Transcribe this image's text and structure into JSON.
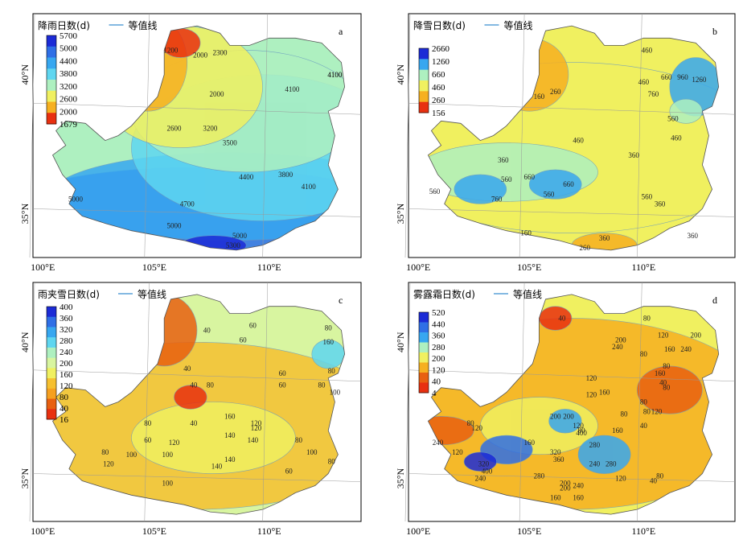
{
  "panels": [
    {
      "id": "a",
      "letter": "a",
      "title": "降雨日数(d)",
      "legend_line": "等值线",
      "colorbar": [
        "5700",
        "5000",
        "4400",
        "3800",
        "3200",
        "2600",
        "2000",
        "1679"
      ],
      "colors": [
        "#1c2bd6",
        "#2f6fe6",
        "#37a7f0",
        "#5fd6f0",
        "#aef0c0",
        "#f0f060",
        "#f6b020",
        "#e83010"
      ],
      "contours": [
        "1200",
        "2000",
        "2300",
        "2000",
        "2600",
        "3200",
        "3500",
        "4100",
        "4100",
        "4100",
        "3800",
        "4100",
        "4400",
        "4700",
        "5000",
        "5000",
        "5000",
        "5300"
      ],
      "x_ticks": [
        "100°E",
        "105°E",
        "110°E"
      ],
      "y_ticks": [
        "40°N",
        "35°N"
      ]
    },
    {
      "id": "b",
      "letter": "b",
      "title": "降雪日数(d)",
      "legend_line": "等值线",
      "colorbar": [
        "2660",
        "1260",
        "660",
        "460",
        "260",
        "156"
      ],
      "colors": [
        "#1c2bd6",
        "#37a7f0",
        "#aef0c0",
        "#f0f060",
        "#f6b020",
        "#e83010"
      ],
      "contours": [
        "460",
        "460",
        "660",
        "960",
        "1260",
        "760",
        "560",
        "460",
        "160",
        "260",
        "460",
        "360",
        "560",
        "660",
        "660",
        "560",
        "760",
        "560",
        "360",
        "360",
        "560",
        "360",
        "260",
        "360",
        "160"
      ],
      "x_ticks": [
        "100°E",
        "105°E",
        "110°E"
      ],
      "y_ticks": [
        "40°N",
        "35°N"
      ]
    },
    {
      "id": "c",
      "letter": "c",
      "title": "雨夹雪日数(d)",
      "legend_line": "等值线",
      "colorbar": [
        "400",
        "360",
        "320",
        "280",
        "240",
        "200",
        "160",
        "120",
        "80",
        "40",
        "16"
      ],
      "colors": [
        "#1c2bd6",
        "#2f6fe6",
        "#37a7f0",
        "#5fd6f0",
        "#aef0c0",
        "#d8f5a0",
        "#f0f060",
        "#f6c030",
        "#f6a020",
        "#e86010",
        "#e83010"
      ],
      "contours": [
        "80",
        "40",
        "60",
        "160",
        "40",
        "80",
        "60",
        "40",
        "80",
        "60",
        "40",
        "60",
        "80",
        "100",
        "80",
        "60",
        "160",
        "120",
        "140",
        "80",
        "140",
        "120",
        "140",
        "120",
        "100",
        "100",
        "80",
        "140",
        "100",
        "80",
        "60",
        "100",
        "120"
      ],
      "x_ticks": [
        "100°E",
        "105°E",
        "110°E"
      ],
      "y_ticks": [
        "40°N",
        "35°N"
      ]
    },
    {
      "id": "d",
      "letter": "d",
      "title": "雾露霜日数(d)",
      "legend_line": "等值线",
      "colorbar": [
        "520",
        "440",
        "360",
        "280",
        "200",
        "120",
        "40",
        "4"
      ],
      "colors": [
        "#1c2bd6",
        "#2f6fe6",
        "#37a7f0",
        "#aef0c0",
        "#f0f060",
        "#f6b020",
        "#e86010",
        "#e83010"
      ],
      "contours": [
        "40",
        "80",
        "120",
        "200",
        "240",
        "80",
        "160",
        "240",
        "200",
        "80",
        "160",
        "120",
        "160",
        "120",
        "80",
        "40",
        "80",
        "200",
        "120",
        "80",
        "160",
        "80",
        "80",
        "120",
        "40",
        "200",
        "400",
        "160",
        "80",
        "120",
        "320",
        "360",
        "280",
        "240",
        "280",
        "400",
        "320",
        "240",
        "280",
        "200",
        "240",
        "160",
        "200",
        "160",
        "120",
        "80",
        "40",
        "120",
        "240"
      ],
      "x_ticks": [
        "100°E",
        "105°E",
        "110°E"
      ],
      "y_ticks": [
        "40°N",
        "35°N"
      ]
    }
  ]
}
